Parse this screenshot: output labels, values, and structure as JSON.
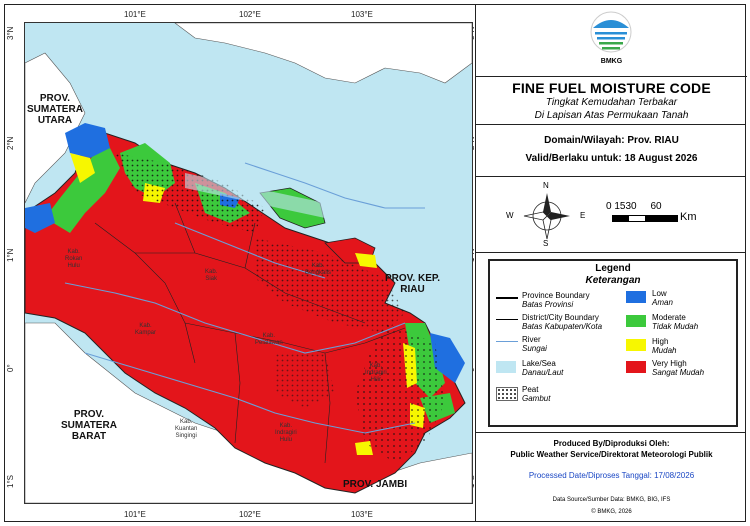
{
  "map": {
    "ticks_lon": [
      "101°E",
      "102°E",
      "103°E"
    ],
    "ticks_lat": [
      "3°N",
      "2°N",
      "1°N",
      "0°",
      "1°S"
    ],
    "labels": {
      "sumut": "PROV.\nSUMATERA\nUTARA",
      "sumbar": "PROV.\nSUMATERA\nBARAT",
      "jambi": "PROV. JAMBI",
      "kepri": "PROV. KEP.\nRIAU",
      "kab_rokan_hulu": "Kab.\nRokan\nHulu",
      "kab_kampar": "Kab.\nKampar",
      "kab_kuansing": "Kab.\nKuantan\nSingingi",
      "kab_pelalawan": "Kab.\nPelalawan",
      "kab_inhu": "Kab.\nIndragiri\nHulu",
      "kab_inhil": "Kab.\nIndragiri\nHilir",
      "kab_siak": "Kab.\nSiak",
      "kab_bengkalis": "Kab.\nBengkalis"
    }
  },
  "header": {
    "logo_text": "BMKG",
    "title": "FINE FUEL MOISTURE CODE",
    "subtitle_1": "Tingkat Kemudahan Terbakar",
    "subtitle_2": "Di Lapisan Atas Permukaan Tanah"
  },
  "info": {
    "domain": "Domain/Wilayah: Prov. RIAU",
    "valid": "Valid/Berlaku untuk: 18 August 2026"
  },
  "compass": {
    "n": "N",
    "s": "S",
    "e": "E",
    "w": "W",
    "scale_nums": "0 1530     60",
    "scale_unit": "Km"
  },
  "legend": {
    "title": "Legend",
    "subtitle": "Keterangan",
    "items": {
      "prov_boundary": "Province Boundary",
      "prov_boundary_id": "Batas Provinsi",
      "city_boundary": "District/City Boundary",
      "city_boundary_id": "Batas Kabupaten/Kota",
      "river": "River",
      "river_id": "Sungai",
      "lake": "Lake/Sea",
      "lake_id": "Danau/Laut",
      "peat": "Peat",
      "peat_id": "Gambut",
      "low": "Low",
      "low_id": "Aman",
      "moderate": "Moderate",
      "moderate_id": "Tidak Mudah",
      "high": "High",
      "high_id": "Mudah",
      "very_high": "Very High",
      "very_high_id": "Sangat Mudah"
    },
    "colors": {
      "low": "#1f6fe0",
      "moderate": "#3cc93c",
      "high": "#f7f700",
      "very_high": "#e3151b",
      "lake": "#bfe6f2"
    }
  },
  "footer": {
    "produced": "Produced By/Diproduksi Oleh:",
    "service": "Public Weather Service/Direktorat Meteorologi Publik",
    "processed": "Processed Date/Diproses Tanggal: 17/08/2026",
    "source": "Data Source/Sumber Data: BMKG, BIG, IFS",
    "copyright": "© BMKG, 2026"
  }
}
